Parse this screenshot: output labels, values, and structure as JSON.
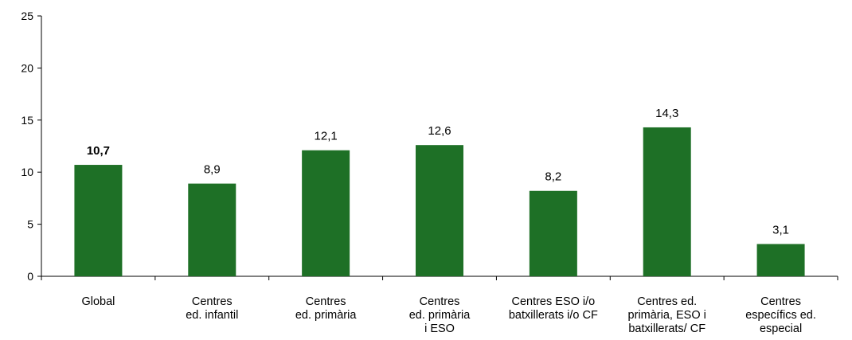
{
  "chart_data": {
    "type": "bar",
    "categories": [
      [
        "Global"
      ],
      [
        "Centres",
        "ed. infantil"
      ],
      [
        "Centres",
        "ed. primària"
      ],
      [
        "Centres",
        "ed. primària",
        "i ESO"
      ],
      [
        "Centres ESO i/o",
        "batxillerats i/o CF"
      ],
      [
        "Centres ed.",
        "primària, ESO i",
        "batxillerats/ CF"
      ],
      [
        "Centres",
        "específics ed.",
        "especial"
      ]
    ],
    "values": [
      10.7,
      8.9,
      12.1,
      12.6,
      8.2,
      14.3,
      3.1
    ],
    "value_labels": [
      "10,7",
      "8,9",
      "12,1",
      "12,6",
      "8,2",
      "14,3",
      "3,1"
    ],
    "bold_labels": [
      true,
      false,
      false,
      false,
      false,
      false,
      false
    ],
    "ylim": [
      0,
      25
    ],
    "yticks": [
      "0",
      "5",
      "10",
      "15",
      "20",
      "25"
    ],
    "ytick_values": [
      0,
      5,
      10,
      15,
      20,
      25
    ],
    "bar_color": "#1e7026",
    "axis_color": "#000000",
    "grid": false,
    "legend": "none"
  }
}
